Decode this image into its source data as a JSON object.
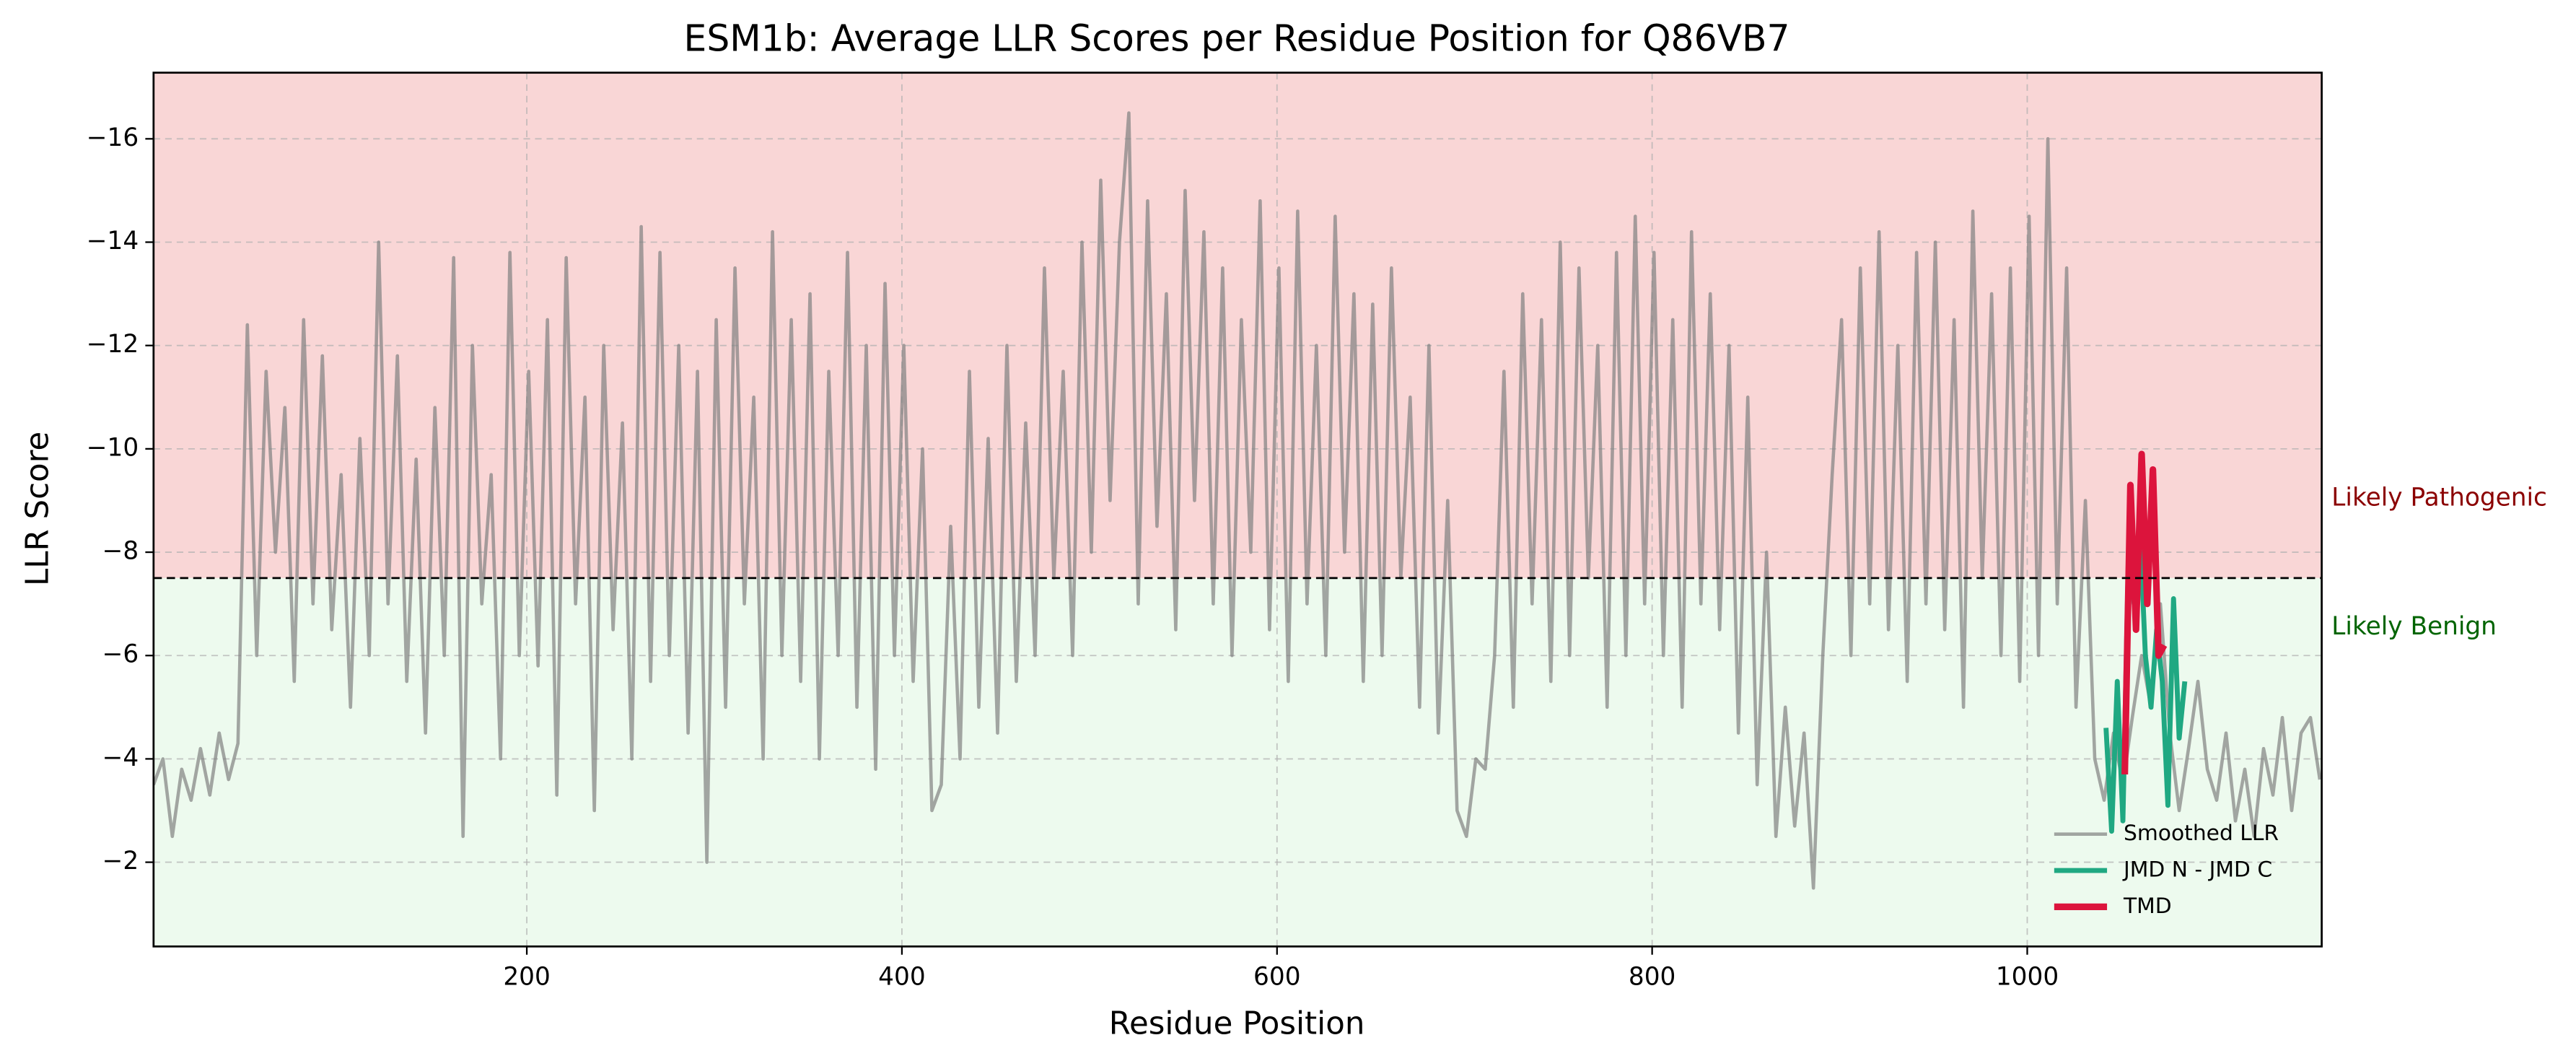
{
  "chart_data": {
    "type": "line",
    "title": "ESM1b: Average LLR Scores per Residue Position for Q86VB7",
    "x_label": "Residue Position",
    "y_label": "LLR Score",
    "xlim": [
      1,
      1157
    ],
    "ylim": [
      -0.37,
      -17.28
    ],
    "xticks": [
      200,
      400,
      600,
      800,
      1000
    ],
    "yticks": [
      {
        "value": -16,
        "label": "−16"
      },
      {
        "value": -14,
        "label": "−14"
      },
      {
        "value": -12,
        "label": "−12"
      },
      {
        "value": -10,
        "label": "−10"
      },
      {
        "value": -8,
        "label": "−8"
      },
      {
        "value": -6,
        "label": "−6"
      },
      {
        "value": -4,
        "label": "−4"
      },
      {
        "value": -2,
        "label": "−2"
      }
    ],
    "grid": true,
    "legend_position": "lower right",
    "threshold": -7.5,
    "regions": [
      {
        "label": "Likely Pathogenic",
        "color": "#f9d6d6",
        "text_color": "#8b0000"
      },
      {
        "label": "Likely Benign",
        "color": "#edfaee",
        "text_color": "#006400"
      }
    ],
    "series": [
      {
        "name": "Smoothed LLR",
        "color": "#808080",
        "width": 2,
        "x": [
          1,
          6,
          11,
          16,
          21,
          26,
          31,
          36,
          41,
          46,
          51,
          56,
          61,
          66,
          71,
          76,
          81,
          86,
          91,
          96,
          101,
          106,
          111,
          116,
          121,
          126,
          131,
          136,
          141,
          146,
          151,
          156,
          161,
          166,
          171,
          176,
          181,
          186,
          191,
          196,
          201,
          206,
          211,
          216,
          221,
          226,
          231,
          236,
          241,
          246,
          251,
          256,
          261,
          266,
          271,
          276,
          281,
          286,
          291,
          296,
          301,
          306,
          311,
          316,
          321,
          326,
          331,
          336,
          341,
          346,
          351,
          356,
          361,
          366,
          371,
          376,
          381,
          386,
          391,
          396,
          401,
          406,
          411,
          416,
          421,
          426,
          431,
          436,
          441,
          446,
          451,
          456,
          461,
          466,
          471,
          476,
          481,
          486,
          491,
          496,
          501,
          506,
          511,
          516,
          521,
          526,
          531,
          536,
          541,
          546,
          551,
          556,
          561,
          566,
          571,
          576,
          581,
          586,
          591,
          596,
          601,
          606,
          611,
          616,
          621,
          626,
          631,
          636,
          641,
          646,
          651,
          656,
          661,
          666,
          671,
          676,
          681,
          686,
          691,
          696,
          701,
          706,
          711,
          716,
          721,
          726,
          731,
          736,
          741,
          746,
          751,
          756,
          761,
          766,
          771,
          776,
          781,
          786,
          791,
          796,
          801,
          806,
          811,
          816,
          821,
          826,
          831,
          836,
          841,
          846,
          851,
          856,
          861,
          866,
          871,
          876,
          881,
          886,
          891,
          896,
          901,
          906,
          911,
          916,
          921,
          926,
          931,
          936,
          941,
          946,
          951,
          956,
          961,
          966,
          971,
          976,
          981,
          986,
          991,
          996,
          1001,
          1006,
          1011,
          1016,
          1021,
          1026,
          1031,
          1036,
          1041,
          1046,
          1051,
          1056,
          1061,
          1066,
          1071,
          1076,
          1081,
          1086,
          1091,
          1096,
          1101,
          1106,
          1111,
          1116,
          1121,
          1126,
          1131,
          1136,
          1141,
          1146,
          1151,
          1156
        ],
        "values": [
          -3.5,
          -4,
          -2.5,
          -3.8,
          -3.2,
          -4.2,
          -3.3,
          -4.5,
          -3.6,
          -4.3,
          -12.4,
          -6,
          -11.5,
          -8,
          -10.8,
          -5.5,
          -12.5,
          -7,
          -11.8,
          -6.5,
          -9.5,
          -5,
          -10.2,
          -6,
          -14,
          -7,
          -11.8,
          -5.5,
          -9.8,
          -4.5,
          -10.8,
          -6,
          -13.7,
          -2.5,
          -12,
          -7,
          -9.5,
          -4,
          -13.8,
          -6,
          -11.5,
          -5.8,
          -12.5,
          -3.3,
          -13.7,
          -7,
          -11,
          -3,
          -12,
          -6.5,
          -10.5,
          -4,
          -14.3,
          -5.5,
          -13.8,
          -6,
          -12,
          -4.5,
          -11.5,
          -2,
          -12.5,
          -5,
          -13.5,
          -7,
          -11,
          -4,
          -14.2,
          -6,
          -12.5,
          -5.5,
          -13,
          -4,
          -11.5,
          -6,
          -13.8,
          -5,
          -12,
          -3.8,
          -13.2,
          -6,
          -12,
          -5.5,
          -10,
          -3,
          -3.5,
          -8.5,
          -4,
          -11.5,
          -5,
          -10.2,
          -4.5,
          -12,
          -5.5,
          -10.5,
          -6,
          -13.5,
          -7.5,
          -11.5,
          -6,
          -14,
          -8,
          -15.2,
          -9,
          -14,
          -16.5,
          -7,
          -14.8,
          -8.5,
          -13,
          -6.5,
          -15,
          -9,
          -14.2,
          -7,
          -13.5,
          -6,
          -12.5,
          -8,
          -14.8,
          -6.5,
          -13.5,
          -5.5,
          -14.6,
          -7,
          -12,
          -6,
          -14.5,
          -8,
          -13,
          -5.5,
          -12.8,
          -6,
          -13.5,
          -7.5,
          -11,
          -5,
          -12,
          -4.5,
          -9,
          -3,
          -2.5,
          -4,
          -3.8,
          -6,
          -11.5,
          -5,
          -13,
          -7,
          -12.5,
          -5.5,
          -14,
          -6,
          -13.5,
          -7.5,
          -12,
          -5,
          -13.8,
          -6,
          -14.5,
          -7,
          -13.8,
          -6,
          -12.5,
          -5,
          -14.2,
          -7,
          -13,
          -6.5,
          -12,
          -4.5,
          -11,
          -3.5,
          -8,
          -2.5,
          -5,
          -2.7,
          -4.5,
          -1.5,
          -6,
          -9.5,
          -12.5,
          -6,
          -13.5,
          -7,
          -14.2,
          -6.5,
          -12,
          -5.5,
          -13.8,
          -7,
          -14,
          -6.5,
          -12.5,
          -5,
          -14.6,
          -7.5,
          -13,
          -6,
          -13.5,
          -5.5,
          -14.5,
          -6,
          -16,
          -7,
          -13.5,
          -5,
          -9,
          -4,
          -3.2,
          -4.5,
          -3.5,
          -4.8,
          -6,
          -5,
          -7,
          -4.5,
          -3,
          -4.2,
          -5.5,
          -3.8,
          -3.2,
          -4.5,
          -2.8,
          -3.8,
          -2.5,
          -4.2,
          -3.3,
          -4.8,
          -3,
          -4.5,
          -4.8,
          -3.6
        ]
      },
      {
        "name": "JMD N - JMD C",
        "color": "#20a882",
        "width": 3,
        "x": [
          1042,
          1045,
          1048,
          1051,
          1054,
          1057,
          1060,
          1063,
          1066,
          1069,
          1072,
          1075,
          1078,
          1081,
          1084
        ],
        "values": [
          -4.6,
          -2.6,
          -5.5,
          -2.8,
          -8,
          -7,
          -8.5,
          -6,
          -5,
          -6.5,
          -5.5,
          -3.1,
          -7.1,
          -4.4,
          -5.5
        ]
      },
      {
        "name": "TMD",
        "color": "#dc143c",
        "width": 4,
        "x": [
          1052,
          1055,
          1058,
          1061,
          1064,
          1067,
          1070,
          1073
        ],
        "values": [
          -3.7,
          -9.3,
          -6.5,
          -9.9,
          -7,
          -9.6,
          -6,
          -6.2
        ]
      }
    ]
  }
}
